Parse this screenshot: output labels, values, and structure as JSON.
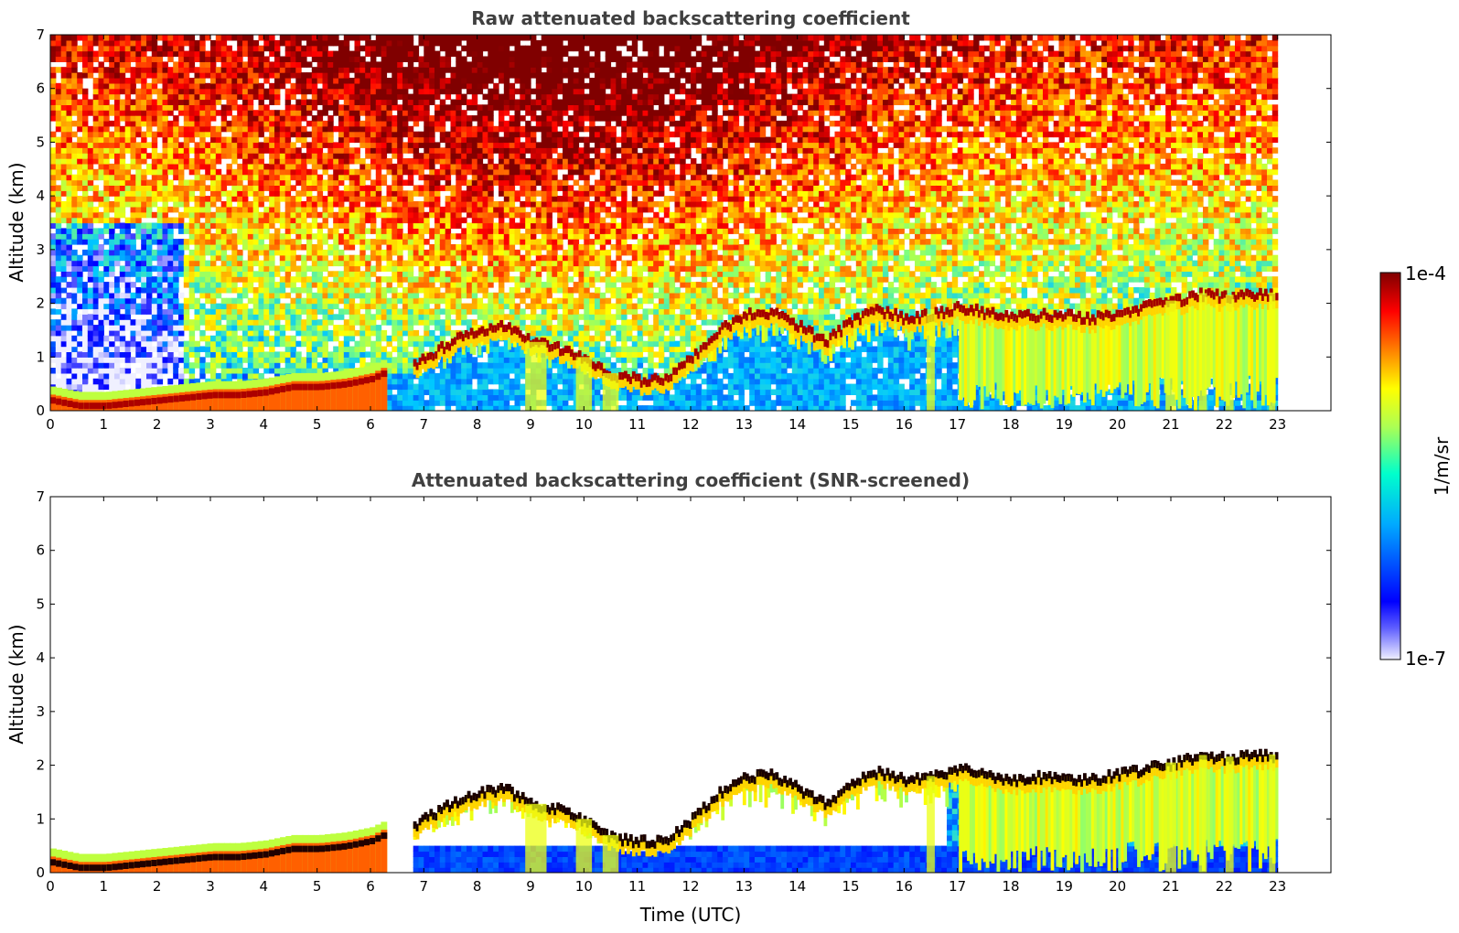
{
  "chart_data": [
    {
      "type": "heatmap",
      "title": "Raw attenuated backscattering coefficient",
      "xlabel": "",
      "ylabel": "Altitude (km)",
      "xlim": [
        0,
        24
      ],
      "ylim": [
        0,
        7
      ],
      "x_ticks": [
        0,
        1,
        2,
        3,
        4,
        5,
        6,
        7,
        8,
        9,
        10,
        11,
        12,
        13,
        14,
        15,
        16,
        17,
        18,
        19,
        20,
        21,
        22,
        23
      ],
      "y_ticks": [
        0,
        1,
        2,
        3,
        4,
        5,
        6,
        7
      ],
      "data_time_range": [
        0,
        23
      ],
      "features": {
        "boundary_layer_top_km": {
          "time": [
            0,
            0.5,
            1,
            1.5,
            2,
            2.5,
            3,
            3.5,
            4,
            4.5,
            5,
            5.5,
            6,
            6.3
          ],
          "altitude": [
            0.25,
            0.15,
            0.15,
            0.2,
            0.25,
            0.3,
            0.35,
            0.35,
            0.4,
            0.5,
            0.5,
            0.55,
            0.65,
            0.8
          ]
        },
        "cloud_layer_km": {
          "time": [
            6.8,
            7.5,
            8,
            8.5,
            9,
            9.5,
            10,
            10.5,
            11,
            11.5,
            12,
            12.5,
            13,
            13.5,
            14,
            14.5,
            15,
            15.5,
            16,
            16.5,
            17,
            17.5,
            18,
            18.5,
            19,
            19.5,
            20,
            20.5,
            21,
            21.5,
            22,
            22.5,
            23
          ],
          "altitude": [
            0.9,
            1.3,
            1.5,
            1.6,
            1.3,
            1.2,
            1.0,
            0.7,
            0.6,
            0.6,
            1.0,
            1.5,
            1.8,
            1.85,
            1.6,
            1.3,
            1.7,
            1.9,
            1.75,
            1.8,
            1.95,
            1.85,
            1.75,
            1.8,
            1.8,
            1.75,
            1.85,
            1.95,
            2.05,
            2.2,
            2.15,
            2.2,
            2.2
          ]
        }
      }
    },
    {
      "type": "heatmap",
      "title": "Attenuated backscattering coefficient (SNR-screened)",
      "xlabel": "Time (UTC)",
      "ylabel": "Altitude (km)",
      "xlim": [
        0,
        24
      ],
      "ylim": [
        0,
        7
      ],
      "x_ticks": [
        0,
        1,
        2,
        3,
        4,
        5,
        6,
        7,
        8,
        9,
        10,
        11,
        12,
        13,
        14,
        15,
        16,
        17,
        18,
        19,
        20,
        21,
        22,
        23
      ],
      "y_ticks": [
        0,
        1,
        2,
        3,
        4,
        5,
        6,
        7
      ],
      "data_time_range": [
        0,
        23
      ],
      "features": {
        "boundary_layer_top_km": {
          "time": [
            0,
            0.5,
            1,
            1.5,
            2,
            2.5,
            3,
            3.5,
            4,
            4.5,
            5,
            5.5,
            6,
            6.3
          ],
          "altitude": [
            0.25,
            0.15,
            0.15,
            0.2,
            0.25,
            0.3,
            0.35,
            0.35,
            0.4,
            0.5,
            0.5,
            0.55,
            0.65,
            0.8
          ]
        },
        "cloud_layer_km": {
          "time": [
            6.8,
            7.5,
            8,
            8.5,
            9,
            9.5,
            10,
            10.5,
            11,
            11.5,
            12,
            12.5,
            13,
            13.5,
            14,
            14.5,
            15,
            15.5,
            16,
            16.5,
            17,
            17.5,
            18,
            18.5,
            19,
            19.5,
            20,
            20.5,
            21,
            21.5,
            22,
            22.5,
            23
          ],
          "altitude": [
            0.9,
            1.3,
            1.5,
            1.6,
            1.3,
            1.2,
            1.0,
            0.7,
            0.6,
            0.6,
            1.0,
            1.5,
            1.8,
            1.85,
            1.6,
            1.3,
            1.7,
            1.9,
            1.75,
            1.8,
            1.95,
            1.85,
            1.75,
            1.8,
            1.8,
            1.75,
            1.85,
            1.95,
            2.05,
            2.2,
            2.15,
            2.2,
            2.2
          ]
        }
      }
    }
  ],
  "colorbar": {
    "label": "1/m/sr",
    "max_label": "1e-4",
    "min_label": "1e-7",
    "scale": "log",
    "colormap": [
      "#f0f0ff",
      "#0000ff",
      "#00c8ff",
      "#7dff7d",
      "#ffff00",
      "#ff8000",
      "#ff0000",
      "#800000"
    ]
  }
}
